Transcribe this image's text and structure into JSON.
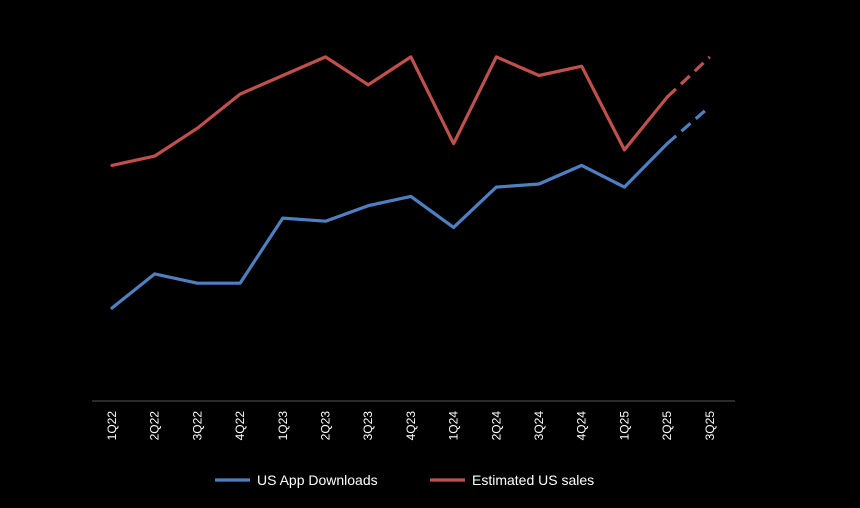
{
  "chart_data": {
    "type": "line",
    "title": "",
    "xlabel": "",
    "ylabel": "",
    "categories": [
      "1Q22",
      "2Q22",
      "3Q22",
      "4Q22",
      "1Q23",
      "2Q23",
      "3Q23",
      "4Q23",
      "1Q24",
      "2Q24",
      "3Q24",
      "4Q24",
      "1Q25",
      "2Q25",
      "3Q25"
    ],
    "ylim": [
      0,
      100
    ],
    "grid": false,
    "legend_position": "bottom",
    "series": [
      {
        "name": "US App Downloads",
        "color": "#4e7fc0",
        "values": [
          20,
          31,
          28,
          28,
          49,
          48,
          53,
          56,
          46,
          59,
          60,
          66,
          59,
          73,
          85
        ],
        "projected_from_index": 13
      },
      {
        "name": "Estimated US sales",
        "color": "#c0504d",
        "values": [
          66,
          69,
          78,
          89,
          95,
          101,
          92,
          101,
          73,
          101,
          95,
          98,
          71,
          88,
          101
        ],
        "projected_from_index": 13
      }
    ]
  }
}
